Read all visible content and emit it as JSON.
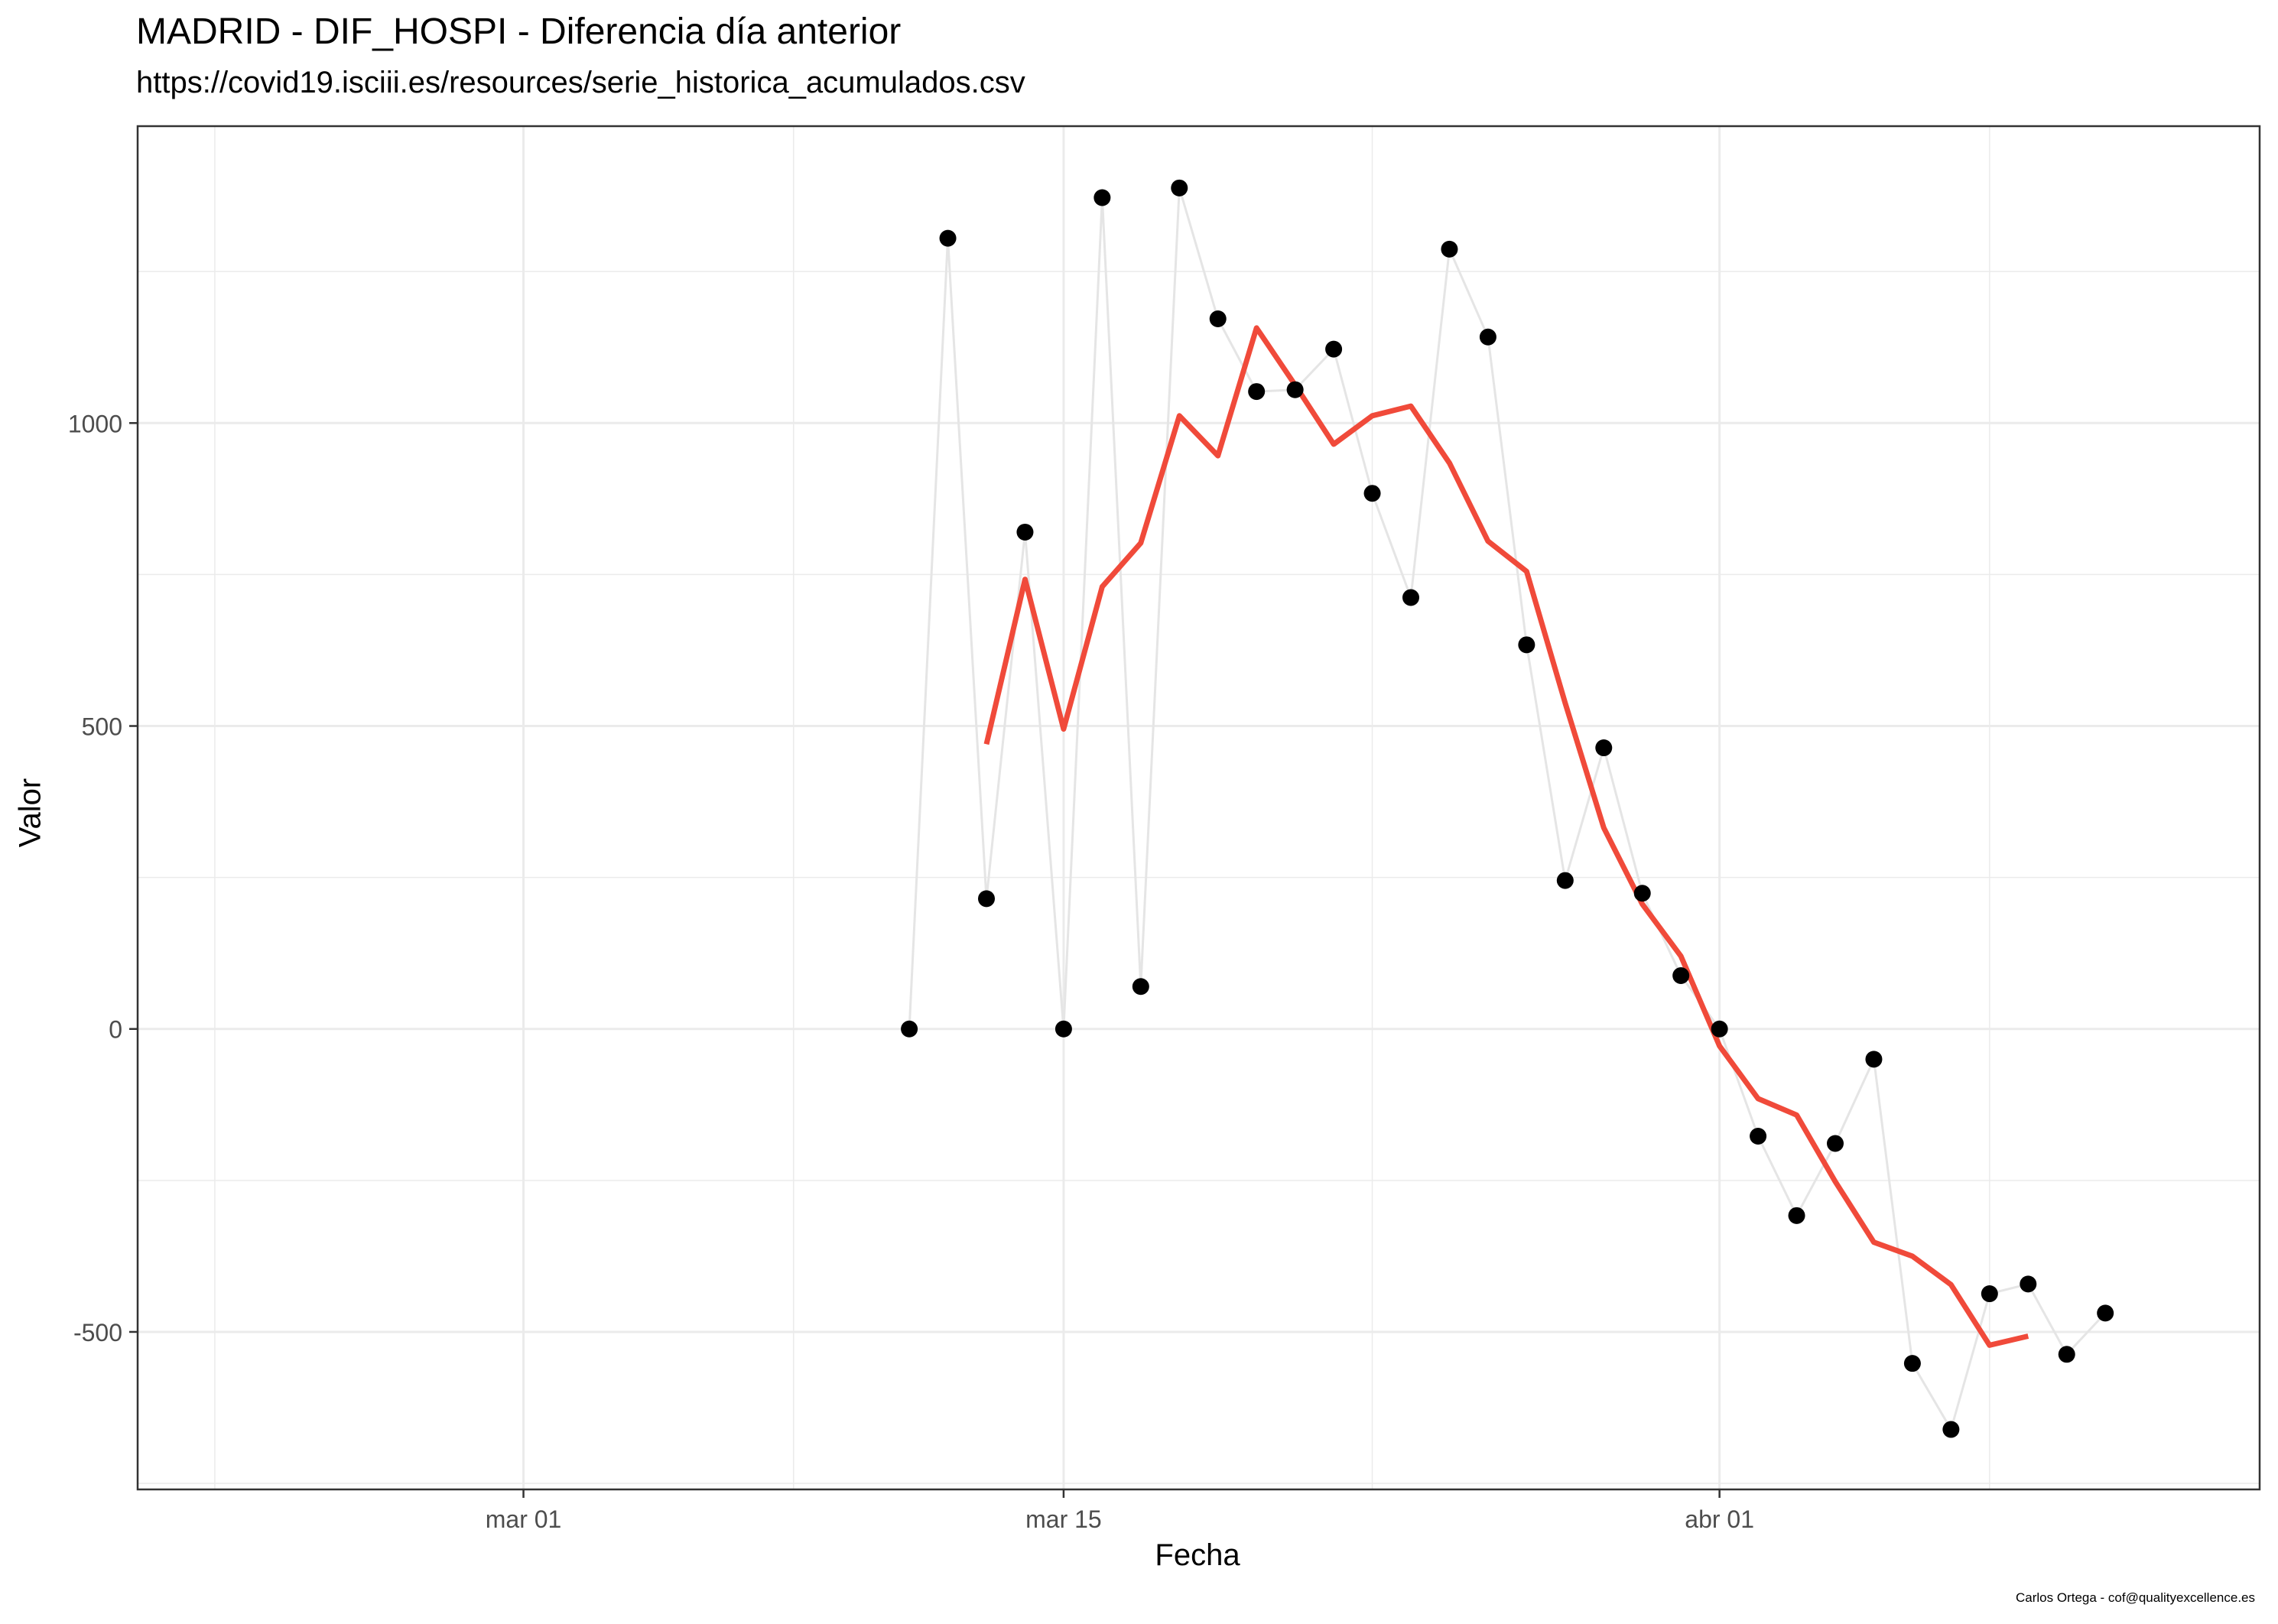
{
  "chart_data": {
    "type": "line",
    "title": "MADRID - DIF_HOSPI - Diferencia día anterior",
    "subtitle": "https://covid19.isciii.es/resources/serie_historica_acumulados.csv",
    "xlabel": "Fecha",
    "ylabel": "Valor",
    "caption": "Carlos Ortega - cof@qualityexcellence.es",
    "x_range": [
      "2020-02-20",
      "2020-04-15"
    ],
    "ylim": [
      -760,
      1490
    ],
    "x_ticks": [
      {
        "date": "2020-03-01",
        "label": "mar 01"
      },
      {
        "date": "2020-03-15",
        "label": "mar 15"
      },
      {
        "date": "2020-04-01",
        "label": "abr 01"
      }
    ],
    "x_minor_ticks": [
      "2020-02-22",
      "2020-03-08",
      "2020-03-23",
      "2020-04-08"
    ],
    "y_ticks": [
      -500,
      0,
      500,
      1000
    ],
    "y_minor_ticks": [
      -750,
      -250,
      250,
      750,
      1250
    ],
    "grid": true,
    "colors": {
      "points": "#000000",
      "raw_line": "#e5e5e5",
      "moving_average": "#f04a3a",
      "grid": "#ebebeb",
      "panel_border": "#333333"
    },
    "series": [
      {
        "kind": "raw",
        "x": [
          "2020-03-11",
          "2020-03-12",
          "2020-03-13",
          "2020-03-14",
          "2020-03-15",
          "2020-03-16",
          "2020-03-17",
          "2020-03-18",
          "2020-03-19",
          "2020-03-20",
          "2020-03-21",
          "2020-03-22",
          "2020-03-23",
          "2020-03-24",
          "2020-03-25",
          "2020-03-26",
          "2020-03-27",
          "2020-03-28",
          "2020-03-29",
          "2020-03-30",
          "2020-03-31",
          "2020-04-01",
          "2020-04-02",
          "2020-04-03",
          "2020-04-04",
          "2020-04-05",
          "2020-04-06",
          "2020-04-07",
          "2020-04-08",
          "2020-04-09",
          "2020-04-10",
          "2020-04-11"
        ],
        "values": [
          0,
          1305,
          215,
          820,
          0,
          1372,
          70,
          1388,
          1172,
          1052,
          1055,
          1122,
          884,
          712,
          1287,
          1142,
          634,
          245,
          464,
          224,
          88,
          0,
          -177,
          -308,
          -189,
          -50,
          -552,
          -661,
          -437,
          -421,
          -537,
          -469
        ]
      },
      {
        "kind": "moving_average",
        "x": [
          "2020-03-13",
          "2020-03-14",
          "2020-03-15",
          "2020-03-16",
          "2020-03-17",
          "2020-03-18",
          "2020-03-19",
          "2020-03-20",
          "2020-03-21",
          "2020-03-22",
          "2020-03-23",
          "2020-03-24",
          "2020-03-25",
          "2020-03-26",
          "2020-03-27",
          "2020-03-28",
          "2020-03-29",
          "2020-03-30",
          "2020-03-31",
          "2020-04-01",
          "2020-04-02",
          "2020-04-03",
          "2020-04-04",
          "2020-04-05",
          "2020-04-06",
          "2020-04-07",
          "2020-04-08",
          "2020-04-09"
        ],
        "values": [
          470,
          742,
          495,
          730,
          802,
          1012,
          946,
          1157,
          1063,
          965,
          1012,
          1028,
          934,
          805,
          755,
          538,
          332,
          206,
          120,
          -28,
          -115,
          -142,
          -252,
          -352,
          -375,
          -422,
          -522,
          -507
        ]
      }
    ]
  }
}
